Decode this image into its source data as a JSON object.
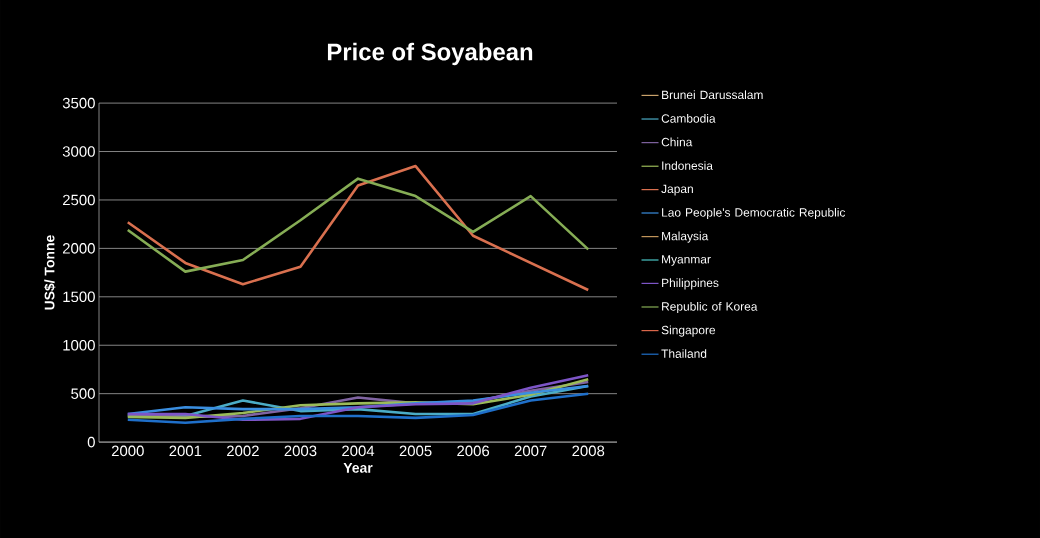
{
  "chart_data": {
    "type": "line",
    "title": "Price of Soyabean",
    "xlabel": "Year",
    "ylabel": "US$/ Tonne",
    "categories": [
      "2000",
      "2001",
      "2002",
      "2003",
      "2004",
      "2005",
      "2006",
      "2007",
      "2008"
    ],
    "ylim": [
      0,
      3500
    ],
    "yticks": [
      0,
      500,
      1000,
      1500,
      2000,
      2500,
      3000,
      3500
    ],
    "grid": "y",
    "legend": "right",
    "marker": "none",
    "line_style": "solid",
    "series": [
      {
        "name": "Brunei Darussalam",
        "color": "#c9a26b",
        "values": [
          null,
          null,
          null,
          null,
          null,
          null,
          null,
          null,
          null
        ]
      },
      {
        "name": "Cambodia",
        "color": "#4bacc6",
        "values": [
          270,
          270,
          430,
          320,
          340,
          290,
          290,
          470,
          580
        ]
      },
      {
        "name": "China",
        "color": "#8064a2",
        "values": [
          280,
          260,
          270,
          350,
          460,
          400,
          420,
          530,
          620
        ]
      },
      {
        "name": "Indonesia",
        "color": "#9bbb59",
        "values": [
          260,
          250,
          300,
          380,
          400,
          410,
          390,
          490,
          650
        ]
      },
      {
        "name": "Japan",
        "color": "#d9704f",
        "values": [
          2270,
          1850,
          1630,
          1810,
          2650,
          2850,
          2130,
          1850,
          1570
        ]
      },
      {
        "name": "Lao People's Democratic Republic",
        "color": "#3a8ee0",
        "values": [
          290,
          360,
          340,
          340,
          360,
          400,
          430,
          510,
          580
        ]
      },
      {
        "name": "Malaysia",
        "color": "#c0945a",
        "values": [
          null,
          null,
          null,
          null,
          null,
          null,
          null,
          null,
          null
        ]
      },
      {
        "name": "Myanmar",
        "color": "#4bc6c6",
        "values": [
          null,
          null,
          null,
          null,
          null,
          null,
          null,
          null,
          null
        ]
      },
      {
        "name": "Philippines",
        "color": "#7d55c7",
        "values": [
          290,
          290,
          230,
          240,
          360,
          390,
          400,
          560,
          690
        ]
      },
      {
        "name": "Republic of Korea",
        "color": "#86ad55",
        "values": [
          2190,
          1760,
          1880,
          2290,
          2720,
          2540,
          2170,
          2540,
          1990
        ]
      },
      {
        "name": "Singapore",
        "color": "#d9664a",
        "values": [
          null,
          null,
          null,
          null,
          null,
          null,
          null,
          null,
          null
        ]
      },
      {
        "name": "Thailand",
        "color": "#1f6fc9",
        "values": [
          230,
          200,
          240,
          270,
          270,
          250,
          280,
          430,
          500
        ]
      }
    ]
  }
}
